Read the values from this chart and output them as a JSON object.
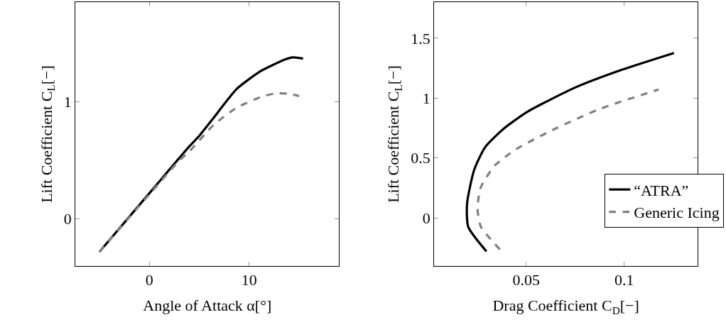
{
  "chart_data": [
    {
      "type": "line",
      "xlabel": "Angle of Attack α[°]",
      "ylabel": "Lift Coefficient C$_{L}$[−]",
      "xlim": [
        -7.4,
        19
      ],
      "ylim": [
        -0.4,
        1.85
      ],
      "xticks": [
        0,
        10
      ],
      "yticks": [
        0,
        1
      ],
      "series": [
        {
          "color": "#000000",
          "line_style": "solid",
          "x": [
            -5,
            0,
            4,
            5,
            6.4,
            8.75,
            11.1,
            12.5,
            13.5,
            14.4,
            15.4
          ],
          "values": [
            -0.28,
            0.22,
            0.62,
            0.71,
            0.86,
            1.11,
            1.26,
            1.32,
            1.36,
            1.38,
            1.37
          ]
        },
        {
          "color": "#808080",
          "line_style": "dashed",
          "x": [
            -5,
            0,
            3,
            4,
            6.4,
            8.75,
            11.1,
            12.5,
            13.9,
            15.0
          ],
          "values": [
            -0.28,
            0.21,
            0.5,
            0.576,
            0.8,
            0.95,
            1.04,
            1.07,
            1.07,
            1.05
          ]
        }
      ]
    },
    {
      "type": "line",
      "xlabel": "Drag Coefficient C$_{D}$[−]",
      "ylabel": "Lift Coefficient C$_{L}$[−]",
      "xlim": [
        0.003,
        0.1375
      ],
      "ylim": [
        -0.4,
        1.8
      ],
      "xticks": [
        0.05,
        0.1
      ],
      "yticks": [
        0,
        0.5,
        1,
        1.5
      ],
      "legend": "bottom right",
      "series": [
        {
          "name": "“ATRA”",
          "color": "#000000",
          "line_style": "solid",
          "x": [
            0.0297,
            0.0204,
            0.0198,
            0.0234,
            0.029,
            0.0389,
            0.051,
            0.0752,
            0.0994,
            0.1254
          ],
          "values": [
            -0.28,
            -0.075,
            0.12,
            0.4,
            0.59,
            0.75,
            0.89,
            1.09,
            1.24,
            1.377
          ]
        },
        {
          "name": "Generic Icing",
          "color": "#808080",
          "line_style": "dashed",
          "x": [
            0.0366,
            0.0269,
            0.0251,
            0.0269,
            0.0341,
            0.045,
            0.0632,
            0.0874,
            0.1176
          ],
          "values": [
            -0.263,
            -0.075,
            0.083,
            0.26,
            0.44,
            0.575,
            0.732,
            0.909,
            1.072
          ]
        }
      ]
    }
  ]
}
